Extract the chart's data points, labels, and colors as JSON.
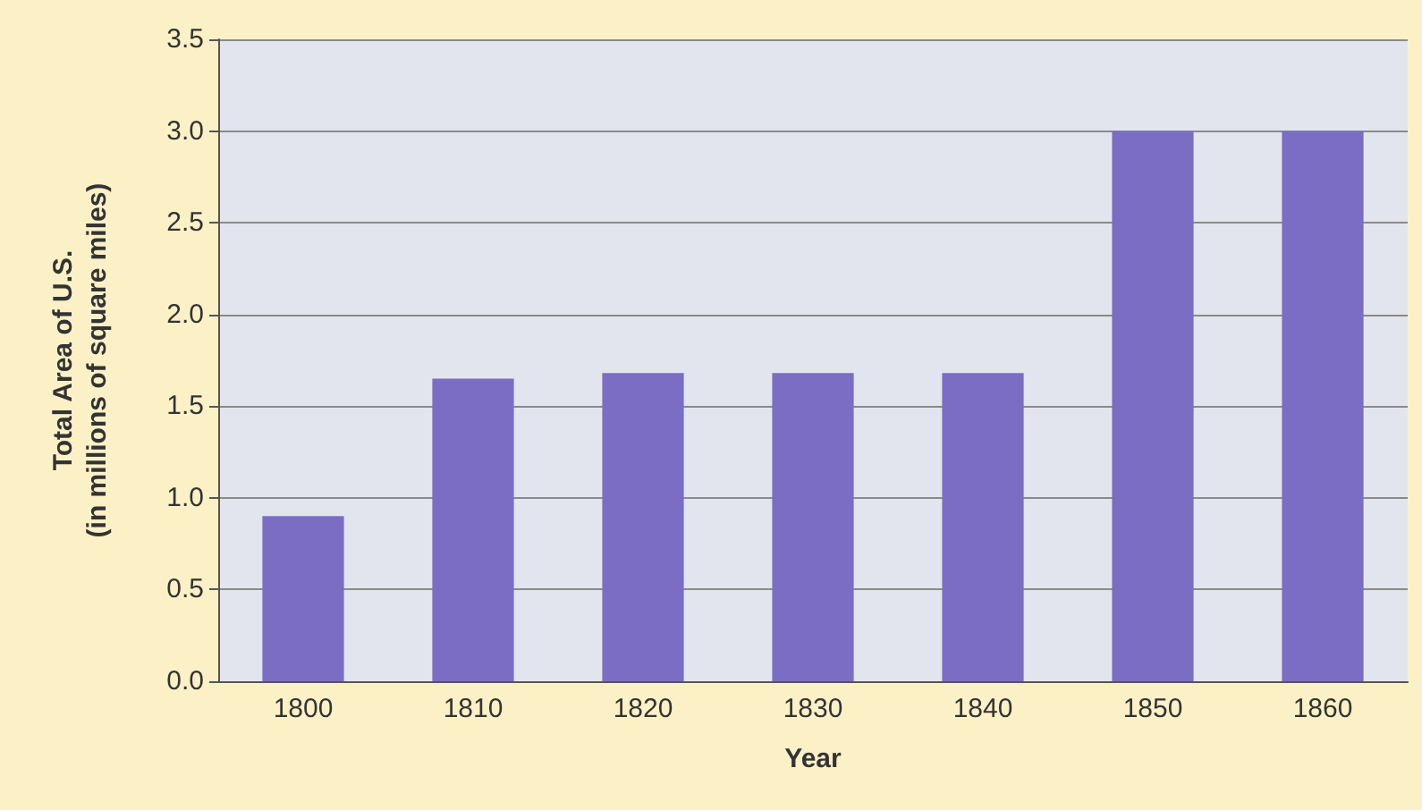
{
  "chart_data": {
    "type": "bar",
    "xlabel": "Year",
    "ylabel": "Total Area of U.S.\n(in millions of square miles)",
    "categories": [
      "1800",
      "1810",
      "1820",
      "1830",
      "1840",
      "1850",
      "1860"
    ],
    "values": [
      0.9,
      1.65,
      1.68,
      1.68,
      1.68,
      3.0,
      3.0
    ],
    "color": "#7b6dc4",
    "ylim": [
      0,
      3.5
    ],
    "yticks": [
      "0.0",
      0.5,
      "1.0",
      1.5,
      "2.0",
      2.5,
      "3.0",
      3.5
    ],
    "grid": "y"
  }
}
